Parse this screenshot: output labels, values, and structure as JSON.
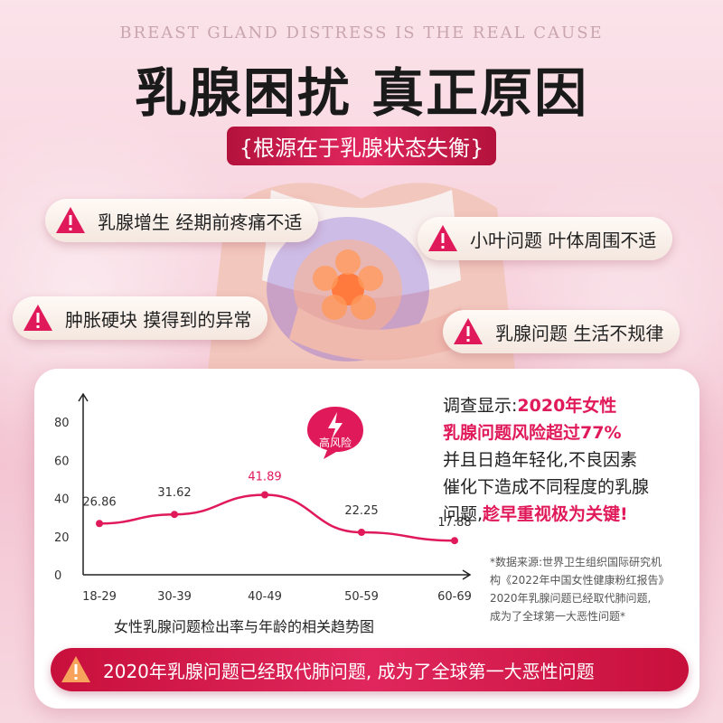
{
  "header": {
    "english_title": "BREAST GLAND DISTRESS IS THE REAL CAUSE",
    "title": "乳腺困扰 真正原因",
    "subtitle": "{根源在于乳腺状态失衡}"
  },
  "symptoms": [
    {
      "text": "乳腺增生 经期前疼痛不适",
      "icon": "warning-icon"
    },
    {
      "text": "小叶问题 叶体周围不适",
      "icon": "warning-icon"
    },
    {
      "text": "肿胀硬块 摸得到的异常",
      "icon": "warning-icon"
    },
    {
      "text": "乳腺问题 生活不规律",
      "icon": "warning-icon"
    }
  ],
  "chart_data": {
    "type": "line",
    "title": "女性乳腺问题检出率与年龄的相关趋势图",
    "categories": [
      "18-29",
      "30-39",
      "40-49",
      "50-59",
      "60-69"
    ],
    "values": [
      26.86,
      31.62,
      41.89,
      22.25,
      17.88
    ],
    "data_labels": [
      "26.86",
      "31.62",
      "41.89",
      "22.25",
      "17.88"
    ],
    "yticks": [
      "0",
      "20",
      "40",
      "60",
      "80"
    ],
    "ylim": [
      0,
      80
    ],
    "xlabel": "",
    "ylabel": "",
    "line_color": "#e0195a",
    "peak_label_color": "#e0195a",
    "badge": {
      "text": "高风险",
      "icon": "lightning-icon"
    }
  },
  "survey": {
    "prefix": "调查显示:",
    "highlight1": "2020年女性",
    "highlight2": "乳腺问题风险超过77%",
    "line3": "并且日趋年轻化,不良因素",
    "line4": "催化下造成不同程度的乳腺",
    "line5_prefix": "问题,",
    "line5_highlight": "趁早重视极为关键!"
  },
  "note": {
    "line1": "*数据来源:世界卫生组织国际研究机",
    "line2": "构《2022年中国女性健康粉红报告》",
    "line3": "2020年乳腺问题已经取代肺问题,",
    "line4": "成为了全球第一大恶性问题*"
  },
  "footer": {
    "text": "2020年乳腺问题已经取代肺问题, 成为了全球第一大恶性问题",
    "icon": "warning-icon"
  },
  "colors": {
    "accent": "#e0195a",
    "banner": "#c8103c",
    "background": "#f7d3de"
  }
}
